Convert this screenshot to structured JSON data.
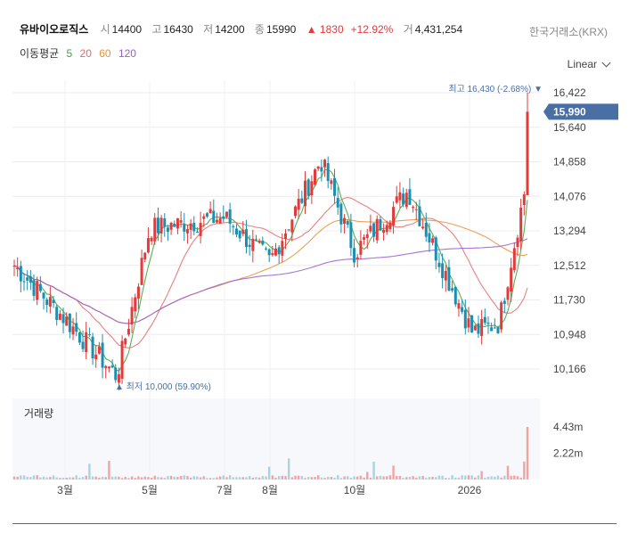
{
  "header": {
    "name": "유바이오로직스",
    "open_label": "시",
    "open": "14400",
    "high_label": "고",
    "high": "16430",
    "low_label": "저",
    "low": "14200",
    "close_label": "종",
    "close": "15990",
    "change_arrow": "▲",
    "change": "1830",
    "change_pct": "+12.92%",
    "volume_label": "거",
    "volume": "4,431,254",
    "exchange": "한국거래소(KRX)"
  },
  "ma_legend": {
    "title": "이동평균",
    "items": [
      {
        "period": "5",
        "color": "#3aa33a"
      },
      {
        "period": "20",
        "color": "#e36a6a"
      },
      {
        "period": "60",
        "color": "#e8913a"
      },
      {
        "period": "120",
        "color": "#9a5bd1"
      }
    ]
  },
  "scale_mode": "Linear",
  "chart_data": {
    "type": "candlestick",
    "x_ticks": [
      "3월",
      "5월",
      "7월",
      "8월",
      "10월",
      "2026"
    ],
    "y_ticks": [
      "16,422",
      "15,640",
      "14,858",
      "14,076",
      "13,294",
      "12,512",
      "11,730",
      "10,948",
      "10,166"
    ],
    "ylim": [
      10166,
      16422
    ],
    "current_price_label": "15,990",
    "current_price": 15990,
    "high_annotation": {
      "label": "최고",
      "value": "16,430",
      "pct": "(-2.68%)",
      "marker": "▼"
    },
    "low_annotation": {
      "label": "최저",
      "value": "10,000",
      "pct": "(59.90%)",
      "marker": "▲"
    },
    "key_points": [
      {
        "x": "start",
        "close": 12550
      },
      {
        "x": "3월",
        "close": 11300
      },
      {
        "x": "early-Apr",
        "close": 10000
      },
      {
        "x": "5월",
        "close": 13350
      },
      {
        "x": "7월",
        "close": 13600
      },
      {
        "x": "8월",
        "close": 12600
      },
      {
        "x": "mid-Aug",
        "close": 14900
      },
      {
        "x": "10월",
        "close": 12800
      },
      {
        "x": "early-Nov",
        "close": 14200
      },
      {
        "x": "Dec",
        "close": 11000
      },
      {
        "x": "2026",
        "close": 11200
      },
      {
        "x": "end",
        "close": 15990
      }
    ],
    "ma_series_names": [
      "5",
      "20",
      "60",
      "120"
    ],
    "volume": {
      "title": "거래량",
      "y_ticks": [
        "4.43m",
        "2.22m"
      ],
      "ylim": [
        0,
        4.43
      ],
      "last_value_m": 4.43
    }
  },
  "colors": {
    "up": "#e23b3b",
    "down": "#1a8fb0",
    "price_tag": "#4a6fa5",
    "annotation": "#4a6fa5",
    "grid": "#ececec"
  }
}
